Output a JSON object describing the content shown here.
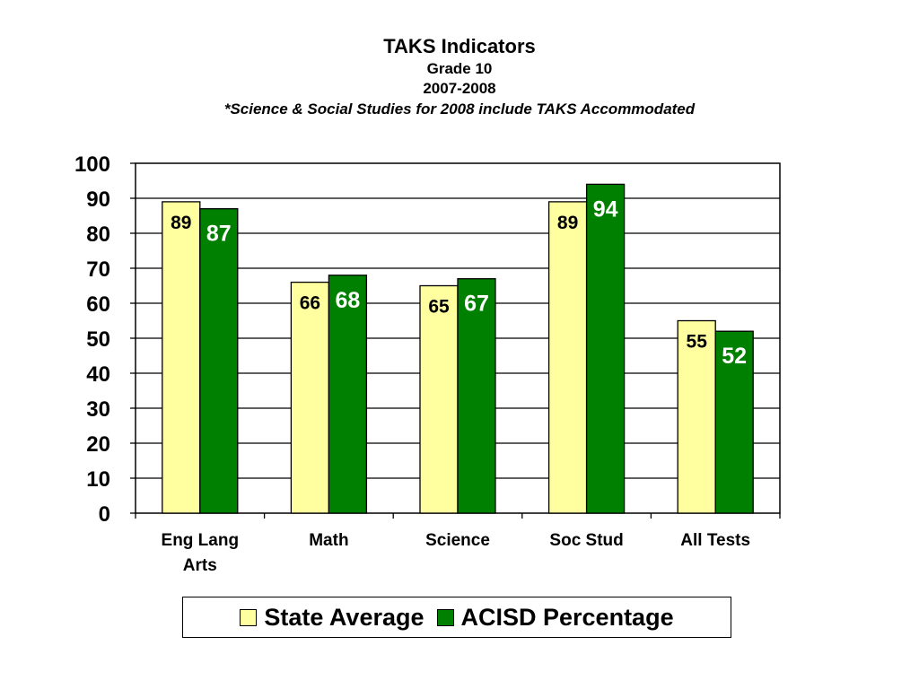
{
  "chart_data": {
    "type": "bar",
    "title": "TAKS Indicators",
    "subtitle_lines": [
      "Grade 10",
      "2007-2008",
      "*Science & Social Studies for 2008 include TAKS Accommodated"
    ],
    "categories": [
      "Eng Lang Arts",
      "Math",
      "Science",
      "Soc Stud",
      "All Tests"
    ],
    "category_label_lines": [
      [
        "Eng Lang",
        "Arts"
      ],
      [
        "Math"
      ],
      [
        "Science"
      ],
      [
        "Soc Stud"
      ],
      [
        "All Tests"
      ]
    ],
    "series": [
      {
        "name": "State Average",
        "values": [
          89,
          66,
          65,
          89,
          55
        ],
        "color": "#FFFFA0",
        "label_color": "#000000"
      },
      {
        "name": "ACISD Percentage",
        "values": [
          87,
          68,
          67,
          94,
          52
        ],
        "color": "#008000",
        "label_color": "#FFFFFF"
      }
    ],
    "ylim": [
      0,
      100
    ],
    "yticks": [
      0,
      10,
      20,
      30,
      40,
      50,
      60,
      70,
      80,
      90,
      100
    ],
    "grid": true,
    "legend_position": "bottom",
    "xlabel": "",
    "ylabel": ""
  }
}
